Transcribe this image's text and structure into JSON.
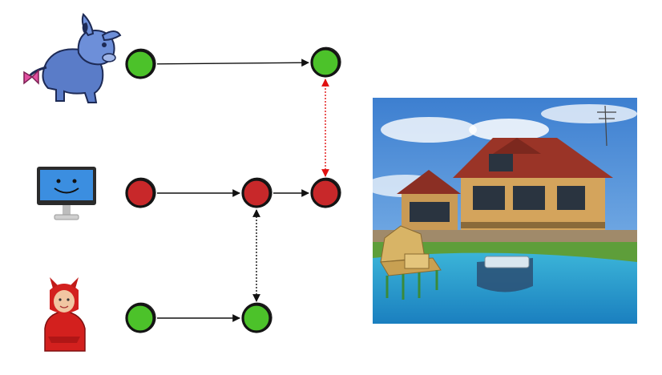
{
  "actors": [
    {
      "id": "donkey",
      "icon": "donkey-cartoon-icon"
    },
    {
      "id": "monitor",
      "icon": "smiling-monitor-icon"
    },
    {
      "id": "devil",
      "icon": "devil-costume-child-icon"
    }
  ],
  "nodes": [
    {
      "id": "d1",
      "row": "donkey",
      "state": "ok"
    },
    {
      "id": "d2",
      "row": "donkey",
      "state": "ok"
    },
    {
      "id": "m1",
      "row": "monitor",
      "state": "fail"
    },
    {
      "id": "m2",
      "row": "monitor",
      "state": "fail"
    },
    {
      "id": "m3",
      "row": "monitor",
      "state": "fail"
    },
    {
      "id": "v1",
      "row": "devil",
      "state": "ok"
    },
    {
      "id": "v2",
      "row": "devil",
      "state": "ok"
    }
  ],
  "edges": [
    {
      "from": "d1",
      "to": "d2",
      "style": "solid",
      "color": "#111111"
    },
    {
      "from": "m1",
      "to": "m2",
      "style": "solid",
      "color": "#111111"
    },
    {
      "from": "m2",
      "to": "m3",
      "style": "solid",
      "color": "#111111"
    },
    {
      "from": "v1",
      "to": "v2",
      "style": "solid",
      "color": "#111111"
    },
    {
      "from": "v2",
      "to": "m2",
      "style": "dotted",
      "color": "#111111",
      "bidirectional": true
    },
    {
      "from": "m3",
      "to": "d2",
      "style": "dotted",
      "color": "#e01010",
      "bidirectional": true
    }
  ],
  "colors": {
    "ok": "#4cc22a",
    "fail": "#c8282a",
    "outline": "#141414"
  },
  "photo": {
    "icon": "log-house-with-pool-photo"
  }
}
